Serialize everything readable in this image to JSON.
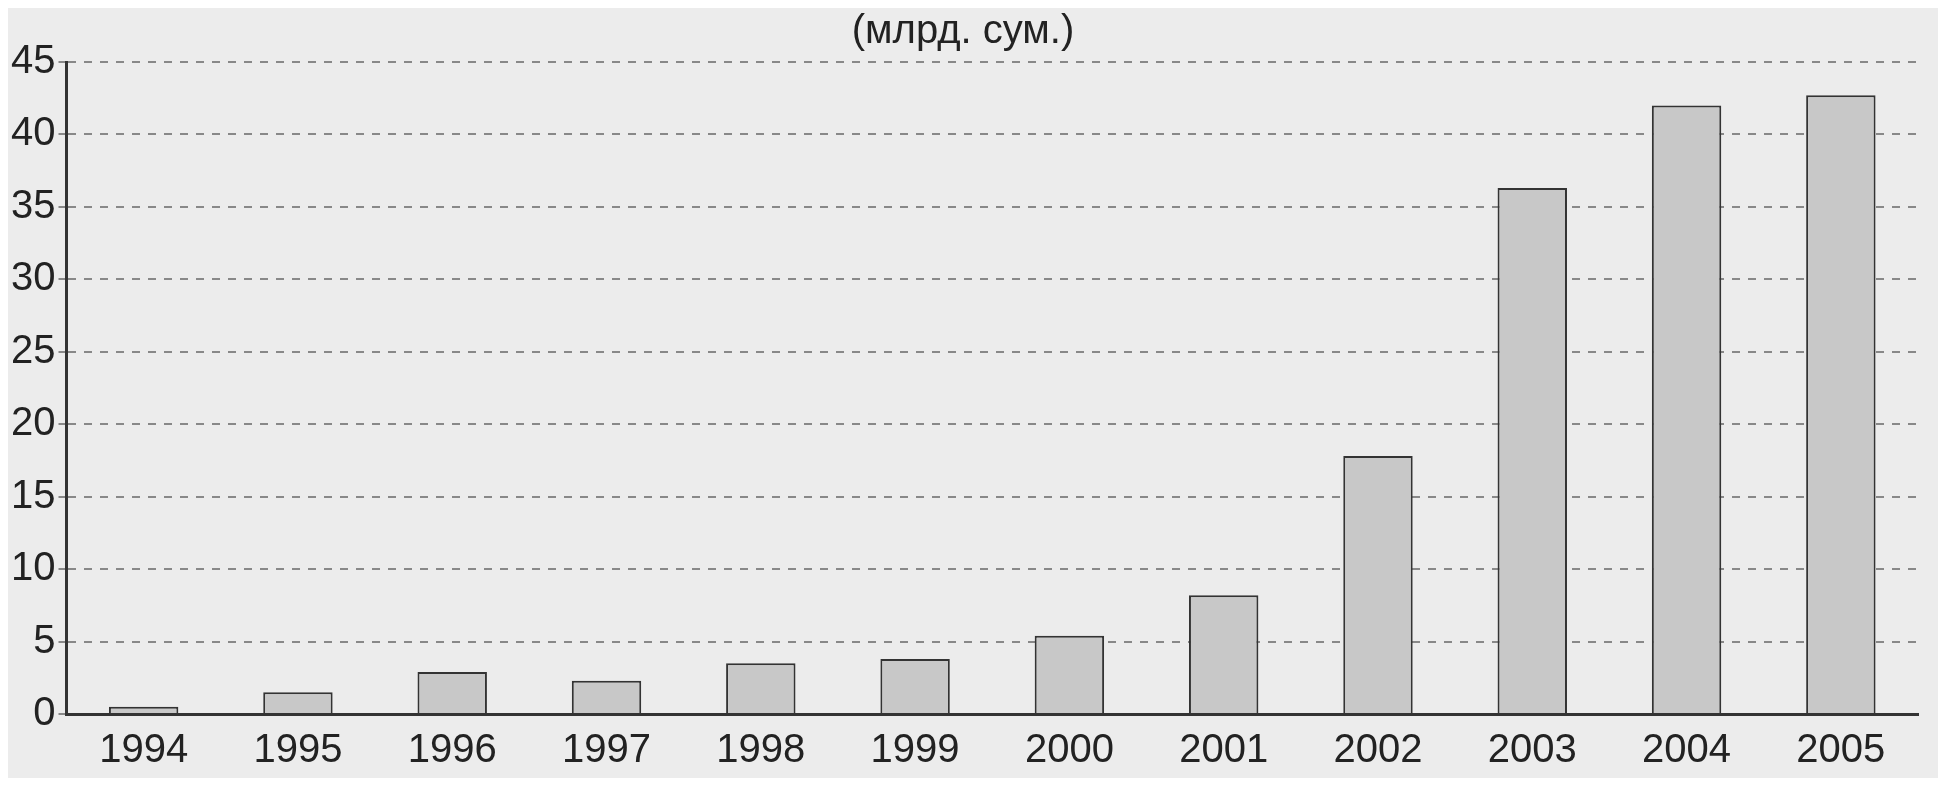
{
  "chart_data": {
    "type": "bar",
    "title": "(млрд. сум.)",
    "categories": [
      "1994",
      "1995",
      "1996",
      "1997",
      "1998",
      "1999",
      "2000",
      "2001",
      "2002",
      "2003",
      "2004",
      "2005"
    ],
    "values": [
      0.5,
      1.5,
      2.9,
      2.3,
      3.5,
      3.8,
      5.4,
      8.2,
      17.8,
      36.3,
      42.0,
      42.7
    ],
    "color": "#c8c8c8",
    "ylim": [
      0,
      45
    ],
    "yticks": [
      0,
      5,
      10,
      15,
      20,
      25,
      30,
      35,
      40,
      45
    ],
    "grid": "y",
    "legend": false
  }
}
